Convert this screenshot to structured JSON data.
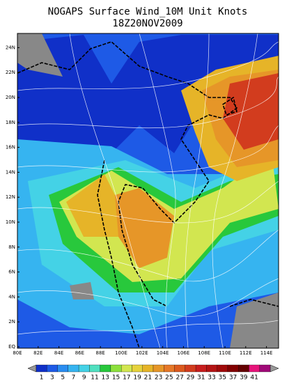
{
  "header": {
    "title": "NOGAPS Surface Wind_10M Unit Knots",
    "subtitle": "18Z20NOV2009"
  },
  "map": {
    "lat_labels": [
      "EQ",
      "2N",
      "4N",
      "6N",
      "8N",
      "10N",
      "12N",
      "14N",
      "16N",
      "18N",
      "20N",
      "22N",
      "24N"
    ],
    "lon_labels": [
      "80E",
      "82E",
      "84E",
      "86E",
      "88E",
      "100E",
      "102E",
      "104E",
      "106E",
      "108E",
      "110E",
      "112E",
      "114E"
    ]
  },
  "colorbar": {
    "labels": [
      "1",
      "3",
      "5",
      "7",
      "9",
      "11",
      "13",
      "15",
      "17",
      "19",
      "21",
      "23",
      "25",
      "27",
      "29",
      "31",
      "33",
      "35",
      "37",
      "39",
      "41"
    ],
    "colors": [
      "#1030c8",
      "#1e5ae6",
      "#2a8cf0",
      "#36b4f0",
      "#44d2e6",
      "#50e0c0",
      "#28c83c",
      "#8ce03c",
      "#d2e650",
      "#e6d23c",
      "#e6b428",
      "#e69628",
      "#e67828",
      "#dc5a1e",
      "#d23c1e",
      "#c81e1e",
      "#b41414",
      "#a00a0a",
      "#820000",
      "#640000",
      "#e6147a",
      "#a00a78"
    ]
  }
}
